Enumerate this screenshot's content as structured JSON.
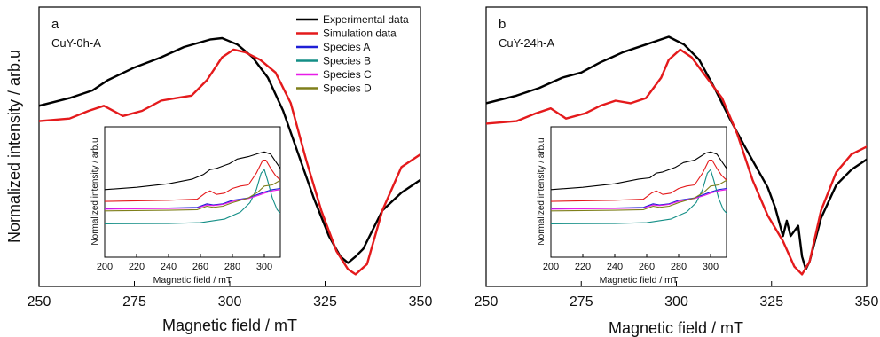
{
  "figure": {
    "ylabel": "Normalized intensity / arb.u",
    "xlabel": "Magnetic field / mT",
    "inset_ylabel": "Normalized intensity / arb.u",
    "inset_xlabel": "Magnetic field / mT"
  },
  "legend": [
    {
      "name": "Experimental data",
      "color": "#000000"
    },
    {
      "name": "Simulation data",
      "color": "#e41a1c"
    },
    {
      "name": "Species A",
      "color": "#1f1fd6"
    },
    {
      "name": "Species B",
      "color": "#138e86"
    },
    {
      "name": "Species C",
      "color": "#e81ce8"
    },
    {
      "name": "Species D",
      "color": "#7f7f1a"
    }
  ],
  "chart_data": [
    {
      "type": "line",
      "panel_letter": "a",
      "sample_label": "CuY-0h-A",
      "xlabel": "Magnetic field / mT",
      "ylabel": "Normalized intensity / arb.u",
      "xlim": [
        250,
        350
      ],
      "ylim": [
        0,
        1
      ],
      "xticks": [
        250,
        275,
        300,
        325,
        350
      ],
      "grid": false,
      "legend_position": "top-right",
      "series": [
        {
          "name": "Experimental data",
          "color": "#000000",
          "x": [
            250,
            258,
            264,
            268,
            275,
            282,
            288,
            295,
            298,
            302,
            306,
            310,
            314,
            318,
            322,
            326,
            329,
            331,
            333,
            335,
            340,
            345,
            350
          ],
          "y": [
            0.69,
            0.72,
            0.75,
            0.79,
            0.84,
            0.88,
            0.92,
            0.95,
            0.955,
            0.93,
            0.88,
            0.8,
            0.67,
            0.5,
            0.33,
            0.18,
            0.1,
            0.075,
            0.1,
            0.13,
            0.28,
            0.35,
            0.4
          ]
        },
        {
          "name": "Simulation data",
          "color": "#e41a1c",
          "x": [
            250,
            258,
            263,
            267,
            272,
            277,
            282,
            286,
            290,
            294,
            298,
            301,
            304,
            308,
            312,
            316,
            320,
            324,
            328,
            331,
            333,
            336,
            340,
            345,
            350
          ],
          "y": [
            0.63,
            0.64,
            0.67,
            0.69,
            0.65,
            0.67,
            0.71,
            0.72,
            0.73,
            0.79,
            0.88,
            0.91,
            0.9,
            0.87,
            0.82,
            0.7,
            0.48,
            0.28,
            0.12,
            0.05,
            0.03,
            0.07,
            0.28,
            0.45,
            0.5
          ]
        }
      ]
    },
    {
      "type": "line",
      "panel_letter": "b",
      "sample_label": "CuY-24h-A",
      "xlabel": "Magnetic field / mT",
      "ylabel": "",
      "xlim": [
        250,
        350
      ],
      "ylim": [
        0,
        1
      ],
      "xticks": [
        250,
        275,
        300,
        325,
        350
      ],
      "grid": false,
      "legend_position": "none",
      "series": [
        {
          "name": "Experimental data",
          "color": "#000000",
          "x": [
            250,
            258,
            264,
            267,
            270,
            275,
            280,
            283,
            286,
            292,
            296,
            298,
            302,
            306,
            310,
            314,
            318,
            321,
            324,
            326,
            328,
            329,
            330,
            332,
            333,
            334,
            335,
            338,
            342,
            346,
            350
          ],
          "y": [
            0.7,
            0.73,
            0.76,
            0.78,
            0.8,
            0.82,
            0.86,
            0.88,
            0.9,
            0.93,
            0.95,
            0.96,
            0.93,
            0.87,
            0.76,
            0.64,
            0.53,
            0.45,
            0.37,
            0.29,
            0.18,
            0.24,
            0.18,
            0.22,
            0.1,
            0.05,
            0.08,
            0.25,
            0.38,
            0.44,
            0.48
          ]
        },
        {
          "name": "Simulation data",
          "color": "#e41a1c",
          "x": [
            250,
            258,
            263,
            267,
            271,
            276,
            280,
            284,
            288,
            292,
            296,
            298,
            301,
            304,
            308,
            312,
            316,
            320,
            324,
            328,
            331,
            333,
            335,
            338,
            342,
            346,
            350
          ],
          "y": [
            0.62,
            0.63,
            0.66,
            0.68,
            0.64,
            0.66,
            0.69,
            0.71,
            0.7,
            0.72,
            0.8,
            0.87,
            0.91,
            0.88,
            0.8,
            0.72,
            0.58,
            0.4,
            0.26,
            0.16,
            0.06,
            0.03,
            0.08,
            0.28,
            0.43,
            0.5,
            0.53
          ]
        }
      ]
    },
    {
      "type": "line",
      "panel_letter": "",
      "sample_label": "",
      "xlabel": "Magnetic field / mT",
      "ylabel": "Normalized intensity / arb.u",
      "xlim": [
        200,
        310
      ],
      "ylim": [
        0,
        1
      ],
      "xticks": [
        200,
        220,
        240,
        260,
        280,
        300
      ],
      "grid": false,
      "legend_position": "none",
      "series": [
        {
          "name": "Experimental data",
          "color": "#000000",
          "x": [
            200,
            220,
            240,
            255,
            262,
            266,
            270,
            278,
            283,
            290,
            297,
            300,
            304,
            307,
            310
          ],
          "y": [
            0.52,
            0.54,
            0.57,
            0.61,
            0.65,
            0.69,
            0.7,
            0.74,
            0.78,
            0.8,
            0.83,
            0.84,
            0.82,
            0.76,
            0.7
          ]
        },
        {
          "name": "Simulation data",
          "color": "#e41a1c",
          "x": [
            200,
            240,
            258,
            263,
            266,
            270,
            275,
            280,
            285,
            290,
            295,
            299,
            301,
            304,
            307,
            310
          ],
          "y": [
            0.42,
            0.43,
            0.44,
            0.49,
            0.51,
            0.48,
            0.49,
            0.53,
            0.55,
            0.56,
            0.66,
            0.77,
            0.77,
            0.7,
            0.64,
            0.6
          ]
        },
        {
          "name": "Species A",
          "color": "#1f1fd6",
          "x": [
            200,
            240,
            258,
            264,
            268,
            274,
            280,
            285,
            290,
            296,
            300,
            305,
            310
          ],
          "y": [
            0.36,
            0.365,
            0.37,
            0.4,
            0.39,
            0.4,
            0.43,
            0.44,
            0.45,
            0.48,
            0.5,
            0.52,
            0.53
          ]
        },
        {
          "name": "Species B",
          "color": "#138e86",
          "x": [
            200,
            240,
            260,
            275,
            285,
            291,
            295,
            298,
            300,
            302,
            305,
            308,
            310
          ],
          "y": [
            0.23,
            0.232,
            0.24,
            0.27,
            0.33,
            0.41,
            0.52,
            0.66,
            0.69,
            0.6,
            0.45,
            0.35,
            0.32
          ]
        },
        {
          "name": "Species C",
          "color": "#e81ce8",
          "x": [
            200,
            240,
            258,
            264,
            268,
            274,
            280,
            285,
            290,
            296,
            300,
            305,
            310
          ],
          "y": [
            0.355,
            0.36,
            0.365,
            0.39,
            0.385,
            0.395,
            0.42,
            0.435,
            0.445,
            0.47,
            0.49,
            0.51,
            0.52
          ]
        },
        {
          "name": "Species D",
          "color": "#7f7f1a",
          "x": [
            200,
            240,
            258,
            264,
            268,
            274,
            280,
            285,
            290,
            296,
            300,
            305,
            310
          ],
          "y": [
            0.34,
            0.345,
            0.35,
            0.38,
            0.37,
            0.38,
            0.41,
            0.43,
            0.45,
            0.5,
            0.55,
            0.56,
            0.6
          ]
        }
      ]
    }
  ]
}
